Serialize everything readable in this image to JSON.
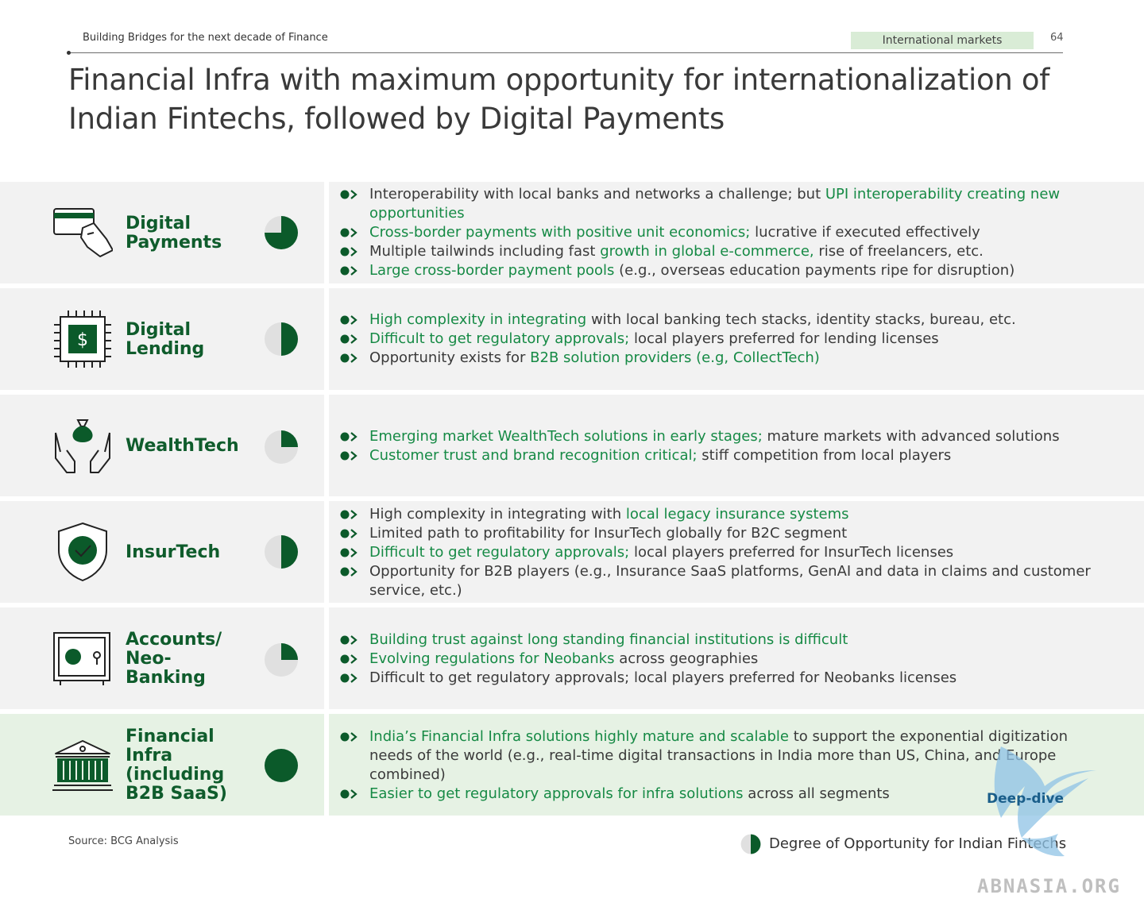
{
  "header": {
    "report_title": "Building Bridges for the next decade of Finance",
    "section_tag": "International markets",
    "page_number": "64"
  },
  "title": {
    "line1": "Financial Infra with maximum opportunity for internationalization of",
    "line2": "Indian Fintechs, followed by Digital Payments"
  },
  "colors": {
    "dark_green": "#0b5a2a",
    "text_green": "#168a45",
    "light_gray": "#e0e0e0",
    "row_bg": "#f2f2f2",
    "highlight_bg": "#e6f2e4"
  },
  "rows": [
    {
      "icon": "credit-card-hand-icon",
      "label": [
        "Digital",
        "Payments"
      ],
      "opportunity": 0.75,
      "bullets": [
        [
          [
            "Interoperability with local banks and networks a challenge; but ",
            false
          ],
          [
            "UPI interoperability creating new opportunities",
            true
          ]
        ],
        [
          [
            "Cross-border payments with positive unit economics;",
            true
          ],
          [
            " lucrative if executed effectively",
            false
          ]
        ],
        [
          [
            "Multiple tailwinds including fast ",
            false
          ],
          [
            "growth in global e-commerce,",
            true
          ],
          [
            " rise of freelancers, etc.",
            false
          ]
        ],
        [
          [
            "Large cross-border payment pools",
            true
          ],
          [
            " (e.g., overseas education payments ripe for disruption)",
            false
          ]
        ]
      ]
    },
    {
      "icon": "dollar-chip-icon",
      "label": [
        "Digital",
        "Lending"
      ],
      "opportunity": 0.5,
      "bullets": [
        [
          [
            "High complexity in integrating",
            true
          ],
          [
            " with local banking tech stacks, identity stacks, bureau, etc.",
            false
          ]
        ],
        [
          [
            "Difficult to get regulatory approvals;",
            true
          ],
          [
            " local players preferred for lending licenses",
            false
          ]
        ],
        [
          [
            "Opportunity exists for ",
            false
          ],
          [
            "B2B solution providers (e.g, CollectTech)",
            true
          ]
        ]
      ]
    },
    {
      "icon": "money-bag-hands-icon",
      "label": [
        "WealthTech"
      ],
      "opportunity": 0.25,
      "bullets": [
        [
          [
            "Emerging market WealthTech solutions in early stages;",
            true
          ],
          [
            " mature markets with advanced solutions",
            false
          ]
        ],
        [
          [
            "Customer trust and brand recognition critical;",
            true
          ],
          [
            " stiff competition from local players",
            false
          ]
        ]
      ]
    },
    {
      "icon": "shield-check-icon",
      "label": [
        "InsurTech"
      ],
      "opportunity": 0.5,
      "bullets": [
        [
          [
            "High complexity in integrating with ",
            false
          ],
          [
            "local legacy insurance systems",
            true
          ]
        ],
        [
          [
            "Limited path to profitability for InsurTech globally for B2C segment",
            false
          ]
        ],
        [
          [
            "Difficult to get regulatory approvals;",
            true
          ],
          [
            " local players preferred for InsurTech licenses",
            false
          ]
        ],
        [
          [
            "Opportunity for B2B players (e.g., Insurance SaaS platforms, GenAI and data in claims and customer service, etc.)",
            false
          ]
        ]
      ]
    },
    {
      "icon": "safe-vault-icon",
      "label": [
        "Accounts/",
        "Neo-",
        "Banking"
      ],
      "opportunity": 0.25,
      "bullets": [
        [
          [
            "Building trust against long standing financial institutions is difficult",
            true
          ]
        ],
        [
          [
            "Evolving regulations for Neobanks",
            true
          ],
          [
            " across geographies",
            false
          ]
        ],
        [
          [
            "Difficult to get regulatory approvals; local players preferred for Neobanks licenses",
            false
          ]
        ]
      ]
    },
    {
      "icon": "bank-building-icon",
      "label": [
        "Financial",
        "Infra",
        "(including",
        "B2B SaaS)"
      ],
      "opportunity": 1.0,
      "bullets": [
        [
          [
            "India’s Financial Infra solutions highly mature and scalable",
            true
          ],
          [
            " to support the exponential digitization needs of the world (e.g., real-time digital transactions in India more than US, China, and Europe combined)",
            false
          ]
        ],
        [
          [
            "Easier to get regulatory approvals for infra solutions",
            true
          ],
          [
            " across all segments",
            false
          ]
        ]
      ]
    }
  ],
  "footer": {
    "source": "Source: BCG Analysis",
    "legend_label": "Degree of Opportunity for Indian Fintechs",
    "legend_level": 0.5,
    "deep_dive": "Deep-dive"
  },
  "watermark": {
    "text": "ABNASIA.ORG",
    "icon": "bird-logo-icon"
  }
}
